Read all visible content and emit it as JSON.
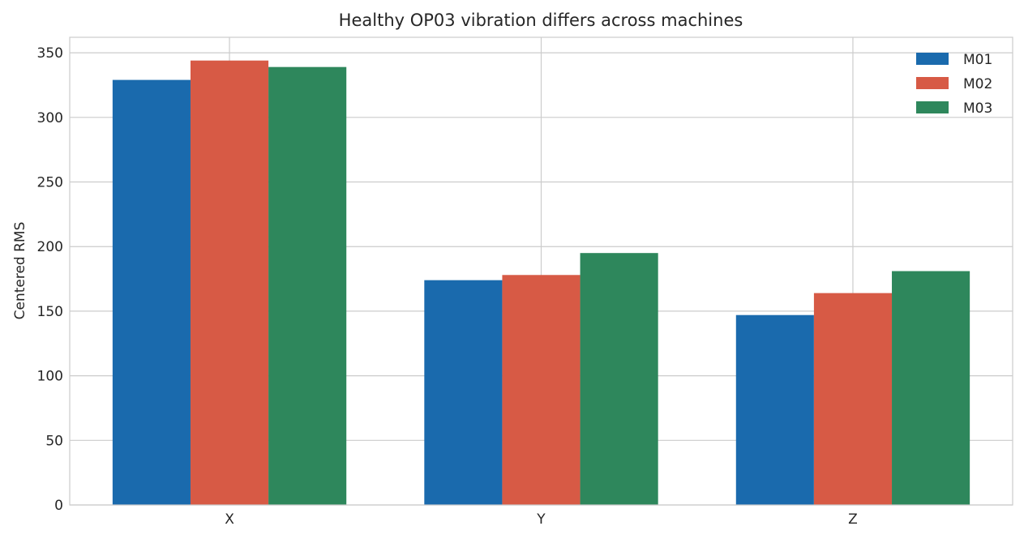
{
  "chart_data": {
    "type": "bar",
    "title": "Healthy OP03 vibration differs across machines",
    "xlabel": "",
    "ylabel": "Centered RMS",
    "categories": [
      "X",
      "Y",
      "Z"
    ],
    "series": [
      {
        "name": "M01",
        "color": "#1a6aad",
        "values": [
          329,
          174,
          147
        ]
      },
      {
        "name": "M02",
        "color": "#d75a45",
        "values": [
          344,
          178,
          164
        ]
      },
      {
        "name": "M03",
        "color": "#2e875c",
        "values": [
          339,
          195,
          181
        ]
      }
    ],
    "ylim": [
      0,
      362
    ],
    "yticks": [
      0,
      50,
      100,
      150,
      200,
      250,
      300,
      350
    ],
    "grid": true,
    "legend_position": "top-right"
  }
}
